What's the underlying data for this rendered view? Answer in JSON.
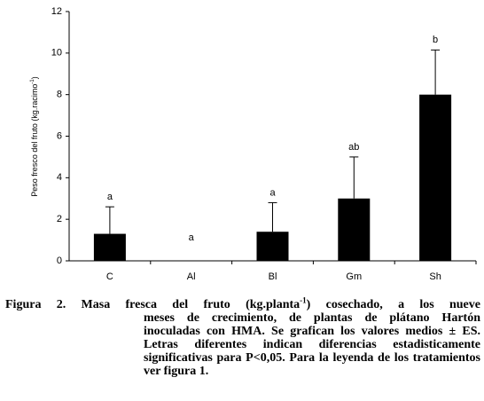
{
  "chart_data": {
    "type": "bar",
    "y_label": [
      "Peso fresco del fruto (kg.racimo",
      "-1",
      ")"
    ],
    "categories": [
      "C",
      "Al",
      "Bl",
      "Gm",
      "Sh"
    ],
    "values": [
      1.3,
      0,
      1.4,
      3.0,
      8.0
    ],
    "errors": [
      1.3,
      0,
      1.4,
      2.0,
      2.15
    ],
    "letters": [
      "a",
      "a",
      "a",
      "ab",
      "b"
    ],
    "color": "#000000",
    "ylim": [
      0,
      12
    ],
    "yticks": [
      0,
      2,
      4,
      6,
      8,
      10,
      12
    ]
  },
  "caption": {
    "label": "Figura 2.",
    "first": [
      "Masa fresca del fruto (kg.planta",
      "-1",
      ") cosechado, a los nueve"
    ],
    "lines": [
      "meses de crecimiento, de plantas de plátano Hartón",
      "inoculadas con HMA. Se grafican los valores medios ± ES.",
      "Letras diferentes indican diferencias estadisticamente",
      "significativas para P<0,05. Para la leyenda de los tratamientos",
      "ver figura 1."
    ]
  }
}
